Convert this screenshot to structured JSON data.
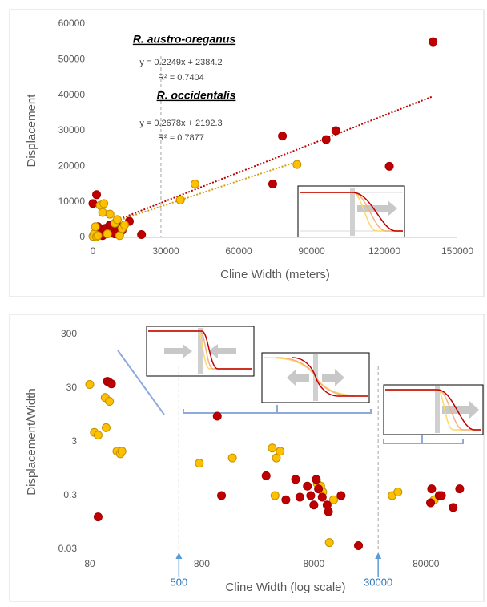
{
  "chart_data": [
    {
      "type": "scatter",
      "x_label": "Cline Width (meters)",
      "y_label": "Displacement",
      "xlim": [
        0,
        150000
      ],
      "xticks": [
        0,
        30000,
        60000,
        90000,
        120000,
        150000
      ],
      "ylim": [
        0,
        60000
      ],
      "yticks": [
        0,
        10000,
        20000,
        30000,
        40000,
        50000,
        60000
      ],
      "annotations": [
        "R. austro-oreganus",
        "y = 0.2249x + 2384.2",
        "R² = 0.7404",
        "R. occidentalis",
        "y = 0.2678x + 2192.3",
        "R² = 0.7877"
      ],
      "vlines": [
        28000
      ],
      "series": [
        {
          "color": "#c00000",
          "x": [
            0,
            1500,
            2000,
            3000,
            4000,
            5000,
            6000,
            7000,
            8000,
            9000,
            10000,
            11000,
            12000,
            15000,
            20000,
            74000,
            78000,
            96000,
            100000,
            122000,
            140000
          ],
          "values": [
            9500,
            12000,
            3000,
            1000,
            500,
            2500,
            1500,
            3500,
            2000,
            1000,
            2500,
            3000,
            2000,
            4500,
            800,
            15000,
            28500,
            27500,
            30000,
            20000,
            55000
          ],
          "trendline": {
            "slope": 0.2678,
            "intercept": 2192.3,
            "x": [
              0,
              140000
            ]
          }
        },
        {
          "color": "#ffc000",
          "x": [
            0,
            500,
            1000,
            1500,
            2000,
            3000,
            4000,
            4500,
            6000,
            7000,
            9000,
            10000,
            11000,
            12000,
            13000,
            36000,
            42000,
            84000
          ],
          "values": [
            300,
            1000,
            3000,
            200,
            500,
            9000,
            7000,
            9500,
            1000,
            6500,
            4000,
            5000,
            500,
            2500,
            3500,
            10500,
            15000,
            20500
          ],
          "trendline": {
            "slope": 0.2249,
            "intercept": 2384.2,
            "x": [
              0,
              85000
            ]
          }
        }
      ]
    },
    {
      "type": "scatter",
      "x_label": "Cline Width (log scale)",
      "y_label": "Displacement/Width",
      "log_x": true,
      "log_y": true,
      "xlim": [
        80,
        250000
      ],
      "xticks": [
        80,
        800,
        8000,
        80000
      ],
      "ylim": [
        0.03,
        300
      ],
      "yticks": [
        0.03,
        0.3,
        3,
        30,
        300
      ],
      "vlines": [
        500,
        30000
      ],
      "series": [
        {
          "color": "#ffc000",
          "x": [
            80,
            88,
            95,
            110,
            112,
            120,
            140,
            150,
            155,
            760,
            1500,
            3400,
            3700,
            4000,
            3600,
            8600,
            9200,
            9600,
            12000,
            11000,
            40000,
            45000,
            95000
          ],
          "values": [
            35,
            4.5,
            4,
            20,
            5.5,
            17,
            2,
            1.8,
            2,
            1.2,
            1.5,
            2.3,
            1.5,
            2,
            0.3,
            0.5,
            0.45,
            0.35,
            0.25,
            0.04,
            0.3,
            0.35,
            0.25
          ]
        },
        {
          "color": "#c00000",
          "x": [
            115,
            120,
            125,
            95,
            1100,
            1200,
            3000,
            4500,
            5500,
            6000,
            7000,
            7500,
            8000,
            8400,
            8800,
            9500,
            10500,
            10800,
            14000,
            20000,
            88000,
            90000,
            105000,
            110000,
            140000,
            160000
          ],
          "values": [
            40,
            38,
            36,
            0.12,
            9,
            0.3,
            0.7,
            0.25,
            0.6,
            0.28,
            0.45,
            0.3,
            0.2,
            0.6,
            0.4,
            0.28,
            0.2,
            0.15,
            0.3,
            0.035,
            0.22,
            0.4,
            0.3,
            0.3,
            0.18,
            0.4
          ]
        }
      ]
    }
  ]
}
